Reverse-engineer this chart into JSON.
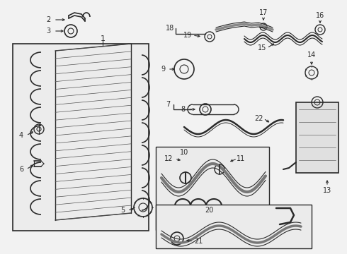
{
  "bg_color": "#f2f2f2",
  "line_color": "#2a2a2a",
  "fig_w": 4.9,
  "fig_h": 3.6,
  "dpi": 100
}
